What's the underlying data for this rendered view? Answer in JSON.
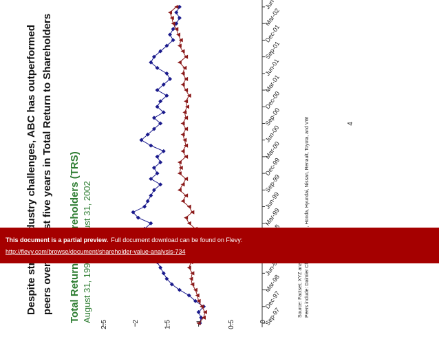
{
  "headline": [
    "Despite strong industry challenges, ABC has outperformed",
    "peers over the past five years in Total Return to Shareholders"
  ],
  "chart_data": {
    "type": "line",
    "title": "Total Return to Shareholders (TRS)",
    "subtitle": "August 31, 1997 to August 31, 2002",
    "categories": [
      "Sep-97",
      null,
      null,
      "Dec-97",
      null,
      null,
      "Mar-98",
      null,
      null,
      "Jun-98",
      null,
      null,
      "Sep-98",
      null,
      null,
      "Dec-98",
      null,
      null,
      "Mar-99",
      null,
      null,
      "Jun-99",
      null,
      null,
      "Sep-99",
      null,
      null,
      "Dec-99",
      null,
      null,
      "Mar-00",
      null,
      null,
      "Jun-00",
      null,
      null,
      "Sep-00",
      null,
      null,
      "Dec-00",
      null,
      null,
      "Mar-01",
      null,
      null,
      "Jun-01",
      null,
      null,
      "Sep-01",
      null,
      null,
      "Dec-01",
      null,
      null,
      "Mar-02",
      null,
      null,
      "Jun-02"
    ],
    "series": [
      {
        "color": "#1a1a8c",
        "marker": "diamond",
        "values": [
          0.98,
          0.96,
          1.0,
          0.92,
          1.05,
          1.15,
          1.3,
          1.42,
          1.5,
          1.55,
          1.6,
          1.65,
          1.7,
          1.72,
          1.75,
          1.7,
          1.8,
          1.85,
          1.75,
          1.95,
          2.03,
          1.85,
          1.8,
          1.75,
          1.7,
          1.6,
          1.75,
          1.65,
          1.7,
          1.6,
          1.65,
          1.55,
          1.75,
          1.9,
          1.8,
          1.7,
          1.6,
          1.7,
          1.55,
          1.65,
          1.6,
          1.5,
          1.65,
          1.55,
          1.45,
          1.5,
          1.65,
          1.75,
          1.7,
          1.6,
          1.5,
          1.4,
          1.45,
          1.4,
          1.35,
          1.3,
          1.35,
          1.3
        ]
      },
      {
        "color": "#8b1a1a",
        "marker": "triangle",
        "values": [
          1.0,
          0.92,
          0.9,
          0.95,
          1.0,
          1.02,
          1.05,
          1.1,
          1.12,
          1.1,
          1.15,
          1.12,
          1.08,
          1.1,
          1.05,
          1.12,
          1.1,
          1.05,
          1.15,
          1.2,
          1.1,
          1.15,
          1.25,
          1.2,
          1.3,
          1.25,
          1.2,
          1.3,
          1.28,
          1.3,
          1.2,
          1.25,
          1.2,
          1.22,
          1.25,
          1.2,
          1.25,
          1.2,
          1.22,
          1.18,
          1.2,
          1.15,
          1.2,
          1.25,
          1.2,
          1.25,
          1.22,
          1.3,
          1.2,
          1.25,
          1.3,
          1.28,
          1.32,
          1.35,
          1.4,
          1.42,
          1.45,
          1.35
        ]
      }
    ],
    "ylim": [
      0,
      2.5
    ],
    "yticks": [
      0,
      0.5,
      1,
      1.5,
      2,
      2.5
    ]
  },
  "source": [
    "Source: Factset; XYZ analysis",
    "Peers include: Daimler Chrysler, Ford, GM, Honda, Hyundai, Nissan, Renault, Toyota, and VW"
  ],
  "page_number": 4,
  "banner": {
    "bold": "This document is a partial preview.",
    "text": "Full document download can be found on Flevy:",
    "link": "http://flevy.com/browse/document/shareholder-value-analysis-734"
  }
}
